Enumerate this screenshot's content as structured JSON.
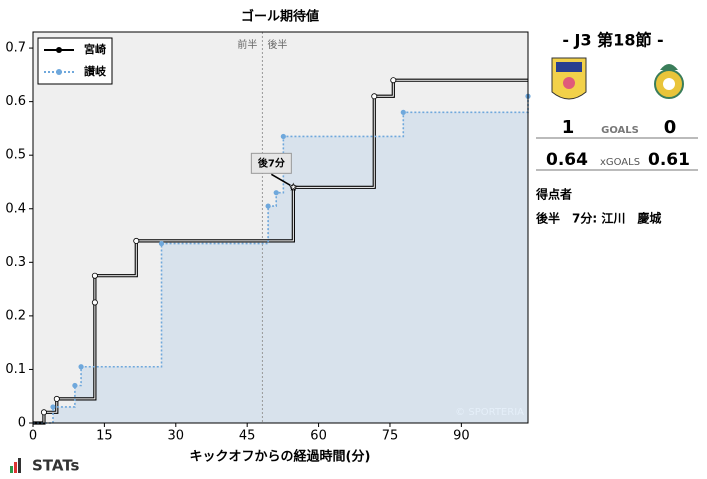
{
  "chart_data": {
    "type": "step",
    "title": "ゴール期待値",
    "xlabel": "キックオフからの経過時間(分)",
    "xlim": [
      0,
      104
    ],
    "xticks": [
      0,
      15,
      30,
      45,
      60,
      75,
      90
    ],
    "ylim": [
      0,
      0.73
    ],
    "yticks": [
      0,
      0.1,
      0.2,
      0.3,
      0.4,
      0.5,
      0.6,
      0.7
    ],
    "legend": "upper left",
    "series": [
      {
        "name": "宮崎",
        "color": "#000000",
        "x": [
          2.3,
          5,
          13,
          13,
          21.7,
          54.7,
          71.7,
          75.7
        ],
        "values": [
          0.02,
          0.045,
          0.225,
          0.275,
          0.34,
          0.44,
          0.61,
          0.64
        ],
        "fill": false
      },
      {
        "name": "讃岐",
        "color": "#6fa8dc",
        "x": [
          4.2,
          8.8,
          10.1,
          27,
          49.4,
          51.1,
          52.6,
          77.8,
          104
        ],
        "values": [
          0.03,
          0.07,
          0.105,
          0.335,
          0.405,
          0.43,
          0.535,
          0.58,
          0.61
        ],
        "fill": true
      }
    ],
    "half_line": {
      "x": 48.2,
      "labels": [
        "前半",
        "後半"
      ]
    },
    "goals": [
      {
        "x": 54.7,
        "y": 0.44,
        "label": "後7分"
      }
    ],
    "credit": "© SPORTERIA"
  },
  "panel": {
    "match": "- J3 第18節 -",
    "home_goals": "1",
    "away_goals": "0",
    "goals_label": "GOALS",
    "home_xg": "0.64",
    "away_xg": "0.61",
    "xg_label": "xGOALS",
    "scorers_title": "得点者",
    "scorer": "後半　7分: 江川　慶城"
  },
  "brand": "STATs"
}
